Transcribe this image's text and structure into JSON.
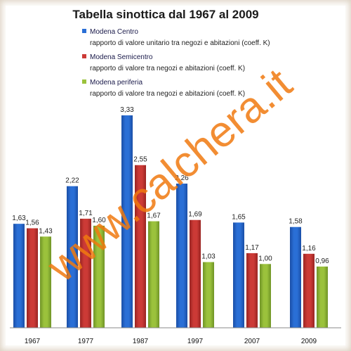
{
  "colors": {
    "series": [
      "#2a6fd6",
      "#cc3a36",
      "#9bc23c"
    ],
    "series_dark": [
      "#1a4ea6",
      "#992422",
      "#6f9426"
    ],
    "watermark": "#f07a10"
  },
  "watermark": {
    "text": "www.calchera.it"
  },
  "chart_data": {
    "type": "bar",
    "title": "Tabella sinottica  dal 1967 al 2009",
    "xlabel": "",
    "ylabel": "",
    "categories": [
      "1967",
      "1977",
      "1987",
      "1997",
      "2007",
      "2009"
    ],
    "value_labels": [
      [
        "1,63",
        "2,22",
        "3,33",
        "2,26",
        "1,65",
        "1,58"
      ],
      [
        "1,56",
        "1,71",
        "2,55",
        "1,69",
        "1,17",
        "1,16"
      ],
      [
        "1,43",
        "1,60",
        "1,67",
        "1,03",
        "1,00",
        "0,96"
      ]
    ],
    "series": [
      {
        "name": "Modena Centro",
        "description": "rapporto di valore unitario   tra negozi e abitazioni (coeff. K)",
        "values": [
          1.63,
          2.22,
          3.33,
          2.26,
          1.65,
          1.58
        ]
      },
      {
        "name": "Modena Semicentro",
        "description": "rapporto di valore  tra negozi e abitazioni (coeff. K)",
        "values": [
          1.56,
          1.71,
          2.55,
          1.69,
          1.17,
          1.16
        ]
      },
      {
        "name": "Modena periferia",
        "description": "rapporto di valore  tra negozi e abitazioni (coeff. K)",
        "values": [
          1.43,
          1.6,
          1.67,
          1.03,
          1.0,
          0.96
        ]
      }
    ],
    "ylim": [
      0,
      3.6
    ],
    "grid": false,
    "legend": "top-center"
  }
}
